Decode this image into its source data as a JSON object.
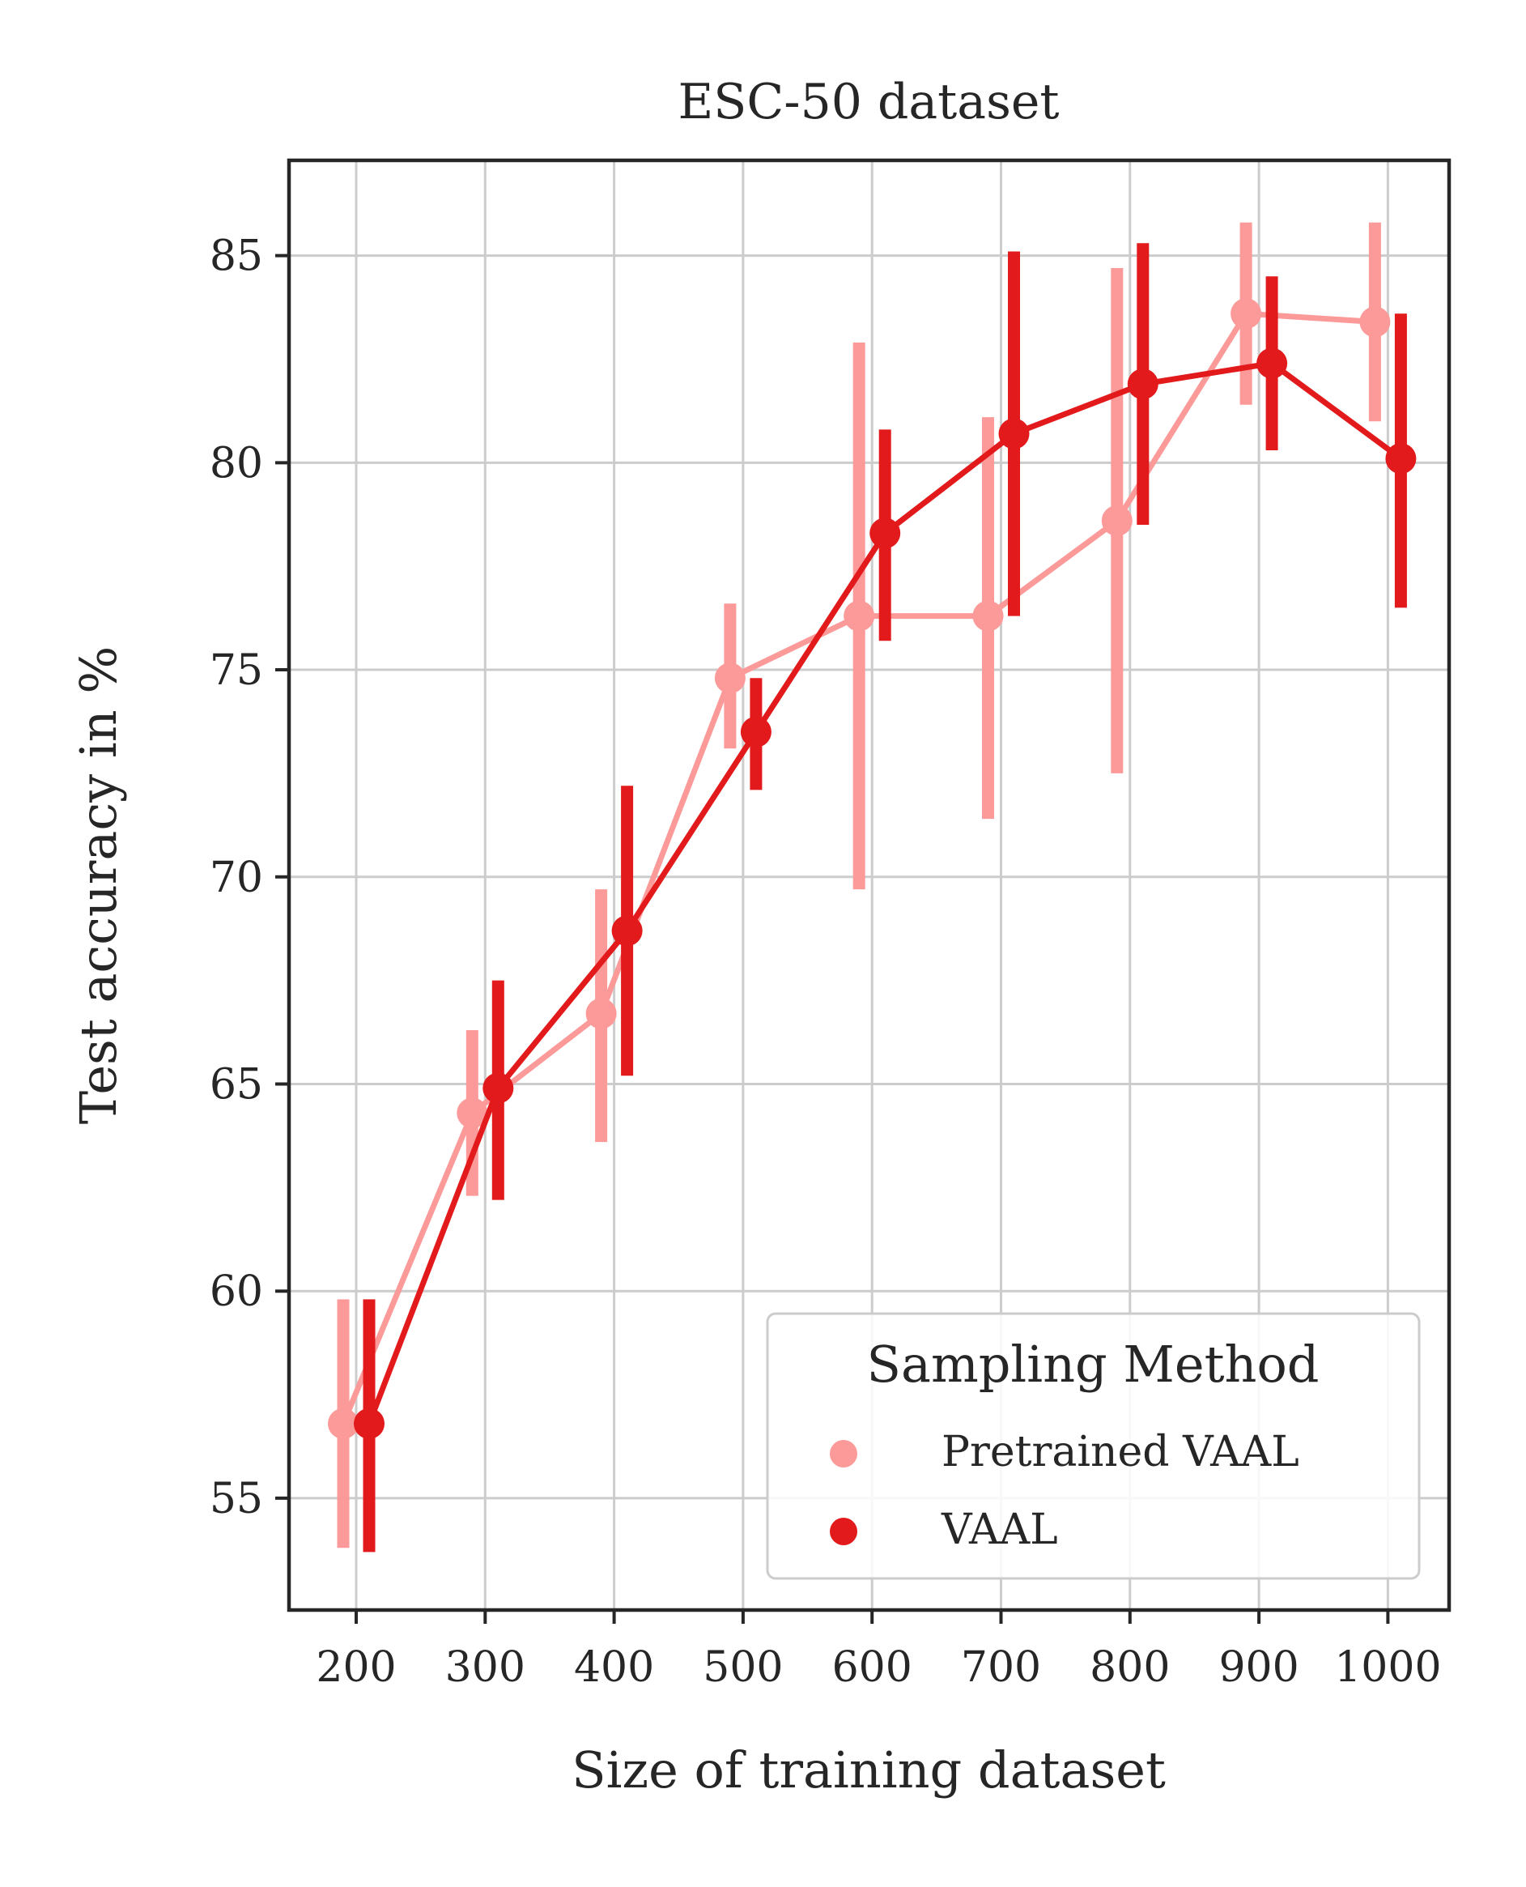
{
  "chart_data": {
    "type": "line",
    "title": "ESC-50 dataset",
    "xlabel": "Size of training dataset",
    "ylabel": "Test accuracy in %",
    "categories": [
      "200",
      "300",
      "400",
      "500",
      "600",
      "700",
      "800",
      "900",
      "1000"
    ],
    "yticks": [
      55,
      60,
      65,
      70,
      75,
      80,
      85
    ],
    "ylim": [
      52.3,
      87.3
    ],
    "grid": true,
    "legend": {
      "title": "Sampling Method",
      "placement": "bottom-right"
    },
    "series": [
      {
        "name": "Pretrained VAAL",
        "color": "#fb9a99",
        "values": [
          56.8,
          64.3,
          66.7,
          74.8,
          76.3,
          76.3,
          78.6,
          83.6,
          83.4
        ],
        "err_low": [
          53.8,
          62.3,
          63.6,
          73.1,
          69.7,
          71.4,
          72.5,
          81.4,
          81.0
        ],
        "err_high": [
          59.8,
          66.3,
          69.7,
          76.6,
          82.9,
          81.1,
          84.7,
          85.8,
          85.8
        ]
      },
      {
        "name": "VAAL",
        "color": "#e31a1c",
        "values": [
          56.8,
          64.9,
          68.7,
          73.5,
          78.3,
          80.7,
          81.9,
          82.4,
          80.1
        ],
        "err_low": [
          53.7,
          62.2,
          65.2,
          72.1,
          75.7,
          76.3,
          78.5,
          80.3,
          76.5
        ],
        "err_high": [
          59.8,
          67.5,
          72.2,
          74.8,
          80.8,
          85.1,
          85.3,
          84.5,
          83.6
        ]
      }
    ]
  }
}
